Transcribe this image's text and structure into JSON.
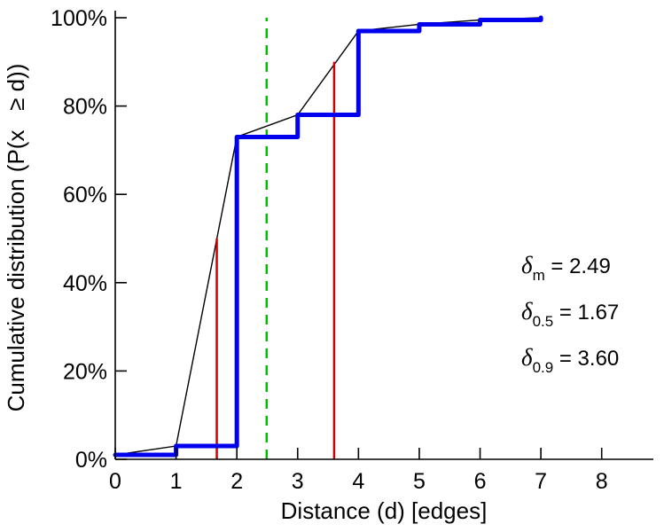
{
  "figure": {
    "background": "#ffffff"
  },
  "chart_data": {
    "type": "line",
    "title": "",
    "xlabel": "Distance (d) [edges]",
    "ylabel": "Cumulative distribution (P(x   ≥ d))",
    "xlim": [
      0,
      8.85
    ],
    "ylim": [
      0,
      100
    ],
    "x_ticks": [
      0,
      1,
      2,
      3,
      4,
      5,
      6,
      7,
      8
    ],
    "y_ticks": [
      0,
      20,
      40,
      60,
      80,
      100
    ],
    "y_tick_labels": [
      "0%",
      "20%",
      "40%",
      "60%",
      "80%",
      "100%"
    ],
    "grid": false,
    "legend": "none",
    "axis_color": "#000000",
    "series": [
      {
        "name": "linear-interpolation",
        "type": "line",
        "color": "#000000",
        "stroke_width": 1.4,
        "points": [
          [
            0,
            1
          ],
          [
            1,
            3
          ],
          [
            2,
            73
          ],
          [
            3,
            78
          ],
          [
            4,
            97
          ],
          [
            5,
            98.5
          ],
          [
            6,
            99.5
          ],
          [
            7,
            100
          ]
        ]
      },
      {
        "name": "empirical-cdf-step",
        "type": "step",
        "color": "#0000ee",
        "stroke_width": 5,
        "points": [
          [
            0,
            1
          ],
          [
            1,
            3
          ],
          [
            2,
            73
          ],
          [
            3,
            78
          ],
          [
            4,
            97
          ],
          [
            5,
            98.5
          ],
          [
            6,
            99.5
          ],
          [
            7,
            100
          ]
        ]
      }
    ],
    "vlines": [
      {
        "name": "delta-0-5-marker",
        "x": 1.67,
        "y0": 0,
        "y1": 50,
        "color": "#cc0000",
        "dash": "none",
        "stroke_width": 2.5
      },
      {
        "name": "delta-0-9-marker",
        "x": 3.6,
        "y0": 0,
        "y1": 90,
        "color": "#cc0000",
        "dash": "none",
        "stroke_width": 2.5
      },
      {
        "name": "mean-marker",
        "x": 2.49,
        "y0": 0,
        "y1": 100,
        "color": "#00bf00",
        "dash": "11,8",
        "stroke_width": 2.5
      }
    ],
    "annotations": [
      {
        "symbol": "δ",
        "subscript": "m",
        "text": " = 2.49"
      },
      {
        "symbol": "δ",
        "subscript": "0.5",
        "text": " = 1.67"
      },
      {
        "symbol": "δ",
        "subscript": "0.9",
        "text": " = 3.60"
      }
    ]
  }
}
